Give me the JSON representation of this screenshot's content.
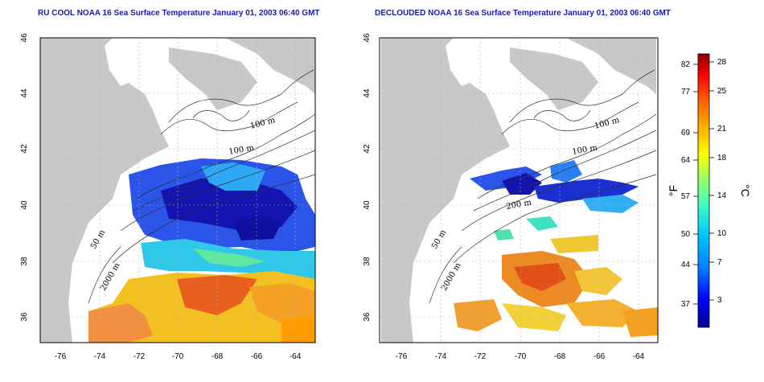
{
  "maps": [
    {
      "id": "left",
      "title": "RU COOL NOAA 16 Sea Surface Temperature January 01, 2003 06:40 GMT",
      "lat_ticks": [
        "36",
        "38",
        "40",
        "42",
        "44",
        "46"
      ],
      "lon_ticks": [
        "-76",
        "-74",
        "-72",
        "-70",
        "-68",
        "-66",
        "-64"
      ],
      "contour_labels": [
        "100 m",
        "100 m",
        "50 m",
        "2000 m"
      ]
    },
    {
      "id": "right",
      "title": "DECLOUDED NOAA 16 Sea Surface Temperature January 01, 2003 06:40 GMT",
      "lat_ticks": [
        "36",
        "38",
        "40",
        "42",
        "44",
        "46"
      ],
      "lon_ticks": [
        "-76",
        "-74",
        "-72",
        "-70",
        "-68",
        "-66",
        "-64"
      ],
      "contour_labels": [
        "100 m",
        "100 m",
        "200 m",
        "50 m",
        "2000 m"
      ]
    }
  ],
  "colorbar": {
    "unit_left": "°F",
    "unit_right": "°C",
    "fahrenheit_ticks": [
      "82",
      "77",
      "69",
      "64",
      "57",
      "50",
      "44",
      "37"
    ],
    "celsius_ticks": [
      "28",
      "25",
      "21",
      "18",
      "14",
      "10",
      "7",
      "3"
    ],
    "colors": [
      "#00008f",
      "#0000ff",
      "#0080ff",
      "#00c8ff",
      "#40ffc0",
      "#a0ff60",
      "#ffff00",
      "#ffb000",
      "#ff6000",
      "#ff0000",
      "#8f0000"
    ]
  }
}
